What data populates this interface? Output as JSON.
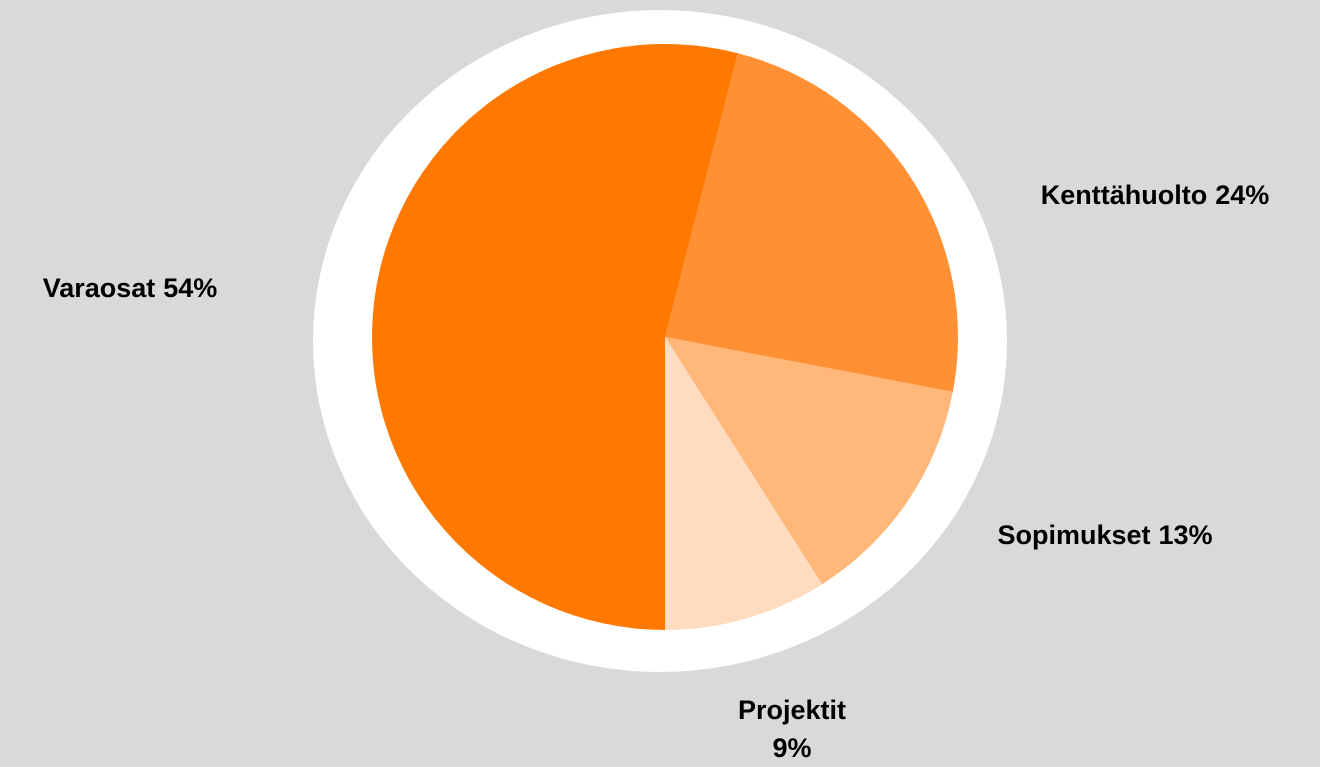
{
  "chart_data": {
    "type": "pie",
    "categories": [
      "Kenttähuolto",
      "Sopimukset",
      "Projektit",
      "Varaosat"
    ],
    "values": [
      24,
      13,
      9,
      54
    ],
    "value_labels": [
      "24%",
      "13%",
      "9%",
      "54%"
    ],
    "colors": [
      "#ff9033",
      "#ffb77a",
      "#ffdcc0",
      "#ff7800"
    ]
  }
}
